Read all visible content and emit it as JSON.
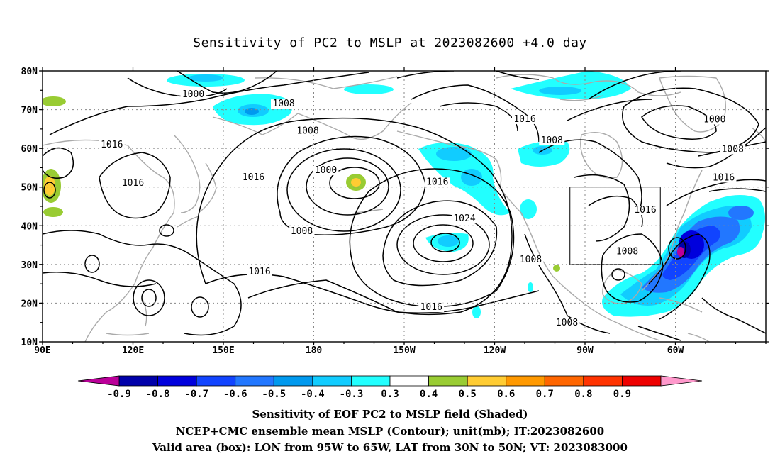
{
  "title": "Sensitivity of PC2 to MSLP at 2023082600 +4.0 day",
  "map": {
    "lon_labels": [
      "90E",
      "120E",
      "150E",
      "180",
      "150W",
      "120W",
      "90W",
      "60W"
    ],
    "lat_labels": [
      "80N",
      "70N",
      "60N",
      "50N",
      "40N",
      "30N",
      "20N",
      "10N"
    ],
    "contour_labels": [
      {
        "text": "1000",
        "lon": 140,
        "lat": 73.4
      },
      {
        "text": "1008",
        "lon": 170,
        "lat": 71
      },
      {
        "text": "1008",
        "lon": 178,
        "lat": 64
      },
      {
        "text": "1016",
        "lon": 113,
        "lat": 60.4
      },
      {
        "text": "1016",
        "lon": 120,
        "lat": 50.5
      },
      {
        "text": "1016",
        "lon": 160,
        "lat": 52
      },
      {
        "text": "1000",
        "lon": 184,
        "lat": 53.8
      },
      {
        "text": "1008",
        "lon": 176,
        "lat": 38
      },
      {
        "text": "1016",
        "lon": 221,
        "lat": 50.8
      },
      {
        "text": "1024",
        "lon": 230,
        "lat": 41.3
      },
      {
        "text": "1016",
        "lon": 162,
        "lat": 27.6
      },
      {
        "text": "1016",
        "lon": 219,
        "lat": 18.4
      },
      {
        "text": "1016",
        "lon": 250,
        "lat": 67
      },
      {
        "text": "1008",
        "lon": 259,
        "lat": 61.5
      },
      {
        "text": "1008",
        "lon": 284,
        "lat": 32.8
      },
      {
        "text": "1008",
        "lon": 252,
        "lat": 30.7
      },
      {
        "text": "1016",
        "lon": 290,
        "lat": 43.5
      },
      {
        "text": "1000",
        "lon": 313,
        "lat": 66.9
      },
      {
        "text": "1008",
        "lon": 319,
        "lat": 59.2
      },
      {
        "text": "1016",
        "lon": 316,
        "lat": 51.9
      },
      {
        "text": "1008",
        "lon": 264,
        "lat": 14.4
      }
    ],
    "valid_box": {
      "lon_min": 265,
      "lon_max": 295,
      "lat_min": 30,
      "lat_max": 50
    }
  },
  "colorbar": {
    "labels": [
      "-0.9",
      "-0.8",
      "-0.7",
      "-0.6",
      "-0.5",
      "-0.4",
      "-0.3",
      "0.3",
      "0.4",
      "0.5",
      "0.6",
      "0.7",
      "0.8",
      "0.9"
    ],
    "colors": [
      "#0000aa",
      "#0000dd",
      "#1144ff",
      "#2277ff",
      "#0099ee",
      "#11ccff",
      "#22ffff",
      "#ffffff",
      "#99cc33",
      "#ffcc33",
      "#ff9900",
      "#ff6600",
      "#ff3300",
      "#ee0000"
    ],
    "low_end_color": "#bb0099",
    "high_end_color": "#ff99cc"
  },
  "footer": {
    "line1": "Sensitivity of EOF PC2 to MSLP field (Shaded)",
    "line2": "NCEP+CMC ensemble mean MSLP (Contour); unit(mb); IT:2023082600",
    "line3": "Valid area (box): LON from 95W to 65W, LAT from 30N to 50N; VT: 2023083000"
  }
}
